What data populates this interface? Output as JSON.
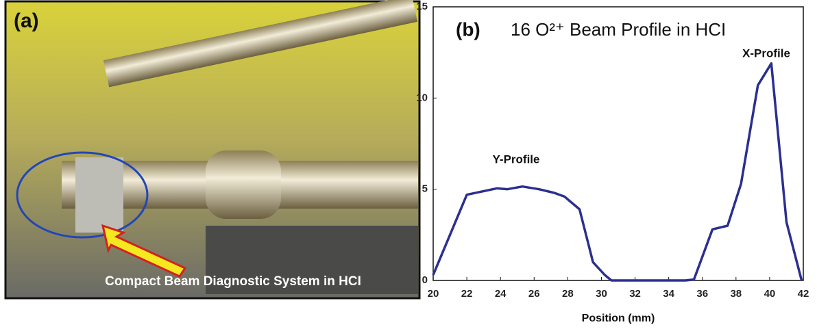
{
  "photo": {
    "label": "(a)",
    "caption": "Compact Beam Diagnostic System in HCI"
  },
  "chart_data": {
    "type": "line",
    "panel_label": "(b)",
    "title": "16 O²⁺ Beam Profile in HCI",
    "annotations": [
      "Y-Profile",
      "X-Profile"
    ],
    "xlabel": "Position (mm)",
    "x": [
      20,
      22,
      23.8,
      24.4,
      25.3,
      26.3,
      27.2,
      27.8,
      28.7,
      29.5,
      30.2,
      30.6,
      35,
      35.5,
      36.6,
      37.5,
      38.3,
      39.3,
      40.1,
      41,
      41.9
    ],
    "values": [
      0.3,
      4.7,
      5.05,
      5.0,
      5.15,
      5.0,
      4.8,
      4.6,
      3.9,
      1.0,
      0.3,
      0,
      0,
      0.05,
      2.8,
      3.0,
      5.3,
      10.7,
      11.9,
      3.2,
      0
    ],
    "color": "#2b2f8f",
    "xlim": [
      20,
      42
    ],
    "xticks": [
      20,
      22,
      24,
      26,
      28,
      30,
      32,
      34,
      36,
      38,
      40,
      42
    ],
    "ylim": [
      0,
      15
    ],
    "yticks": [
      0,
      5,
      10,
      15
    ],
    "grid": false
  }
}
